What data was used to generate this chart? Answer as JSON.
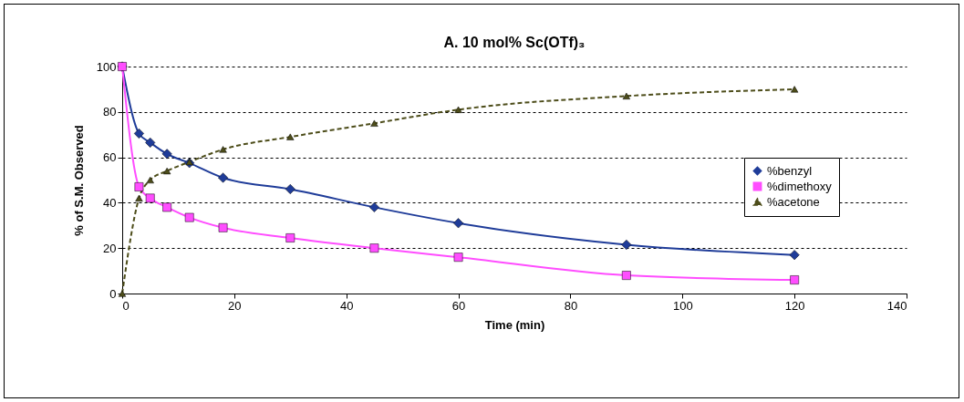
{
  "chart_data": {
    "type": "line",
    "title": "A. 10 mol% Sc(OTf)₃",
    "xlabel": "Time (min)",
    "ylabel": "% of S.M. Observed",
    "xlim": [
      0,
      140
    ],
    "xticks": [
      0,
      20,
      40,
      60,
      80,
      100,
      120,
      140
    ],
    "ylim": [
      0,
      100
    ],
    "yticks": [
      0,
      20,
      40,
      60,
      80,
      100
    ],
    "grid": "y",
    "legend": "right",
    "series": [
      {
        "name": "%benzyl",
        "color": "#1f3c99",
        "marker": "diamond",
        "line_style": "solid",
        "x": [
          0,
          3,
          5,
          8,
          12,
          18,
          30,
          45,
          60,
          90,
          120
        ],
        "values": [
          100,
          70.5,
          66.5,
          61.5,
          57.5,
          51,
          46,
          38,
          31,
          21.5,
          17
        ]
      },
      {
        "name": "%dimethoxy",
        "color": "#ff4dff",
        "marker": "square",
        "line_style": "solid",
        "x": [
          0,
          3,
          5,
          8,
          12,
          18,
          30,
          45,
          60,
          90,
          120
        ],
        "values": [
          100,
          47,
          42,
          38,
          33.5,
          29,
          24.5,
          20,
          16,
          8,
          6
        ]
      },
      {
        "name": "%acetone",
        "color": "#4d4d1a",
        "marker": "triangle",
        "line_style": "dashed",
        "x": [
          0,
          3,
          5,
          8,
          12,
          18,
          30,
          45,
          60,
          90,
          120
        ],
        "values": [
          0,
          42,
          50,
          54,
          58,
          63.5,
          69,
          75,
          81,
          87,
          90
        ]
      }
    ]
  }
}
